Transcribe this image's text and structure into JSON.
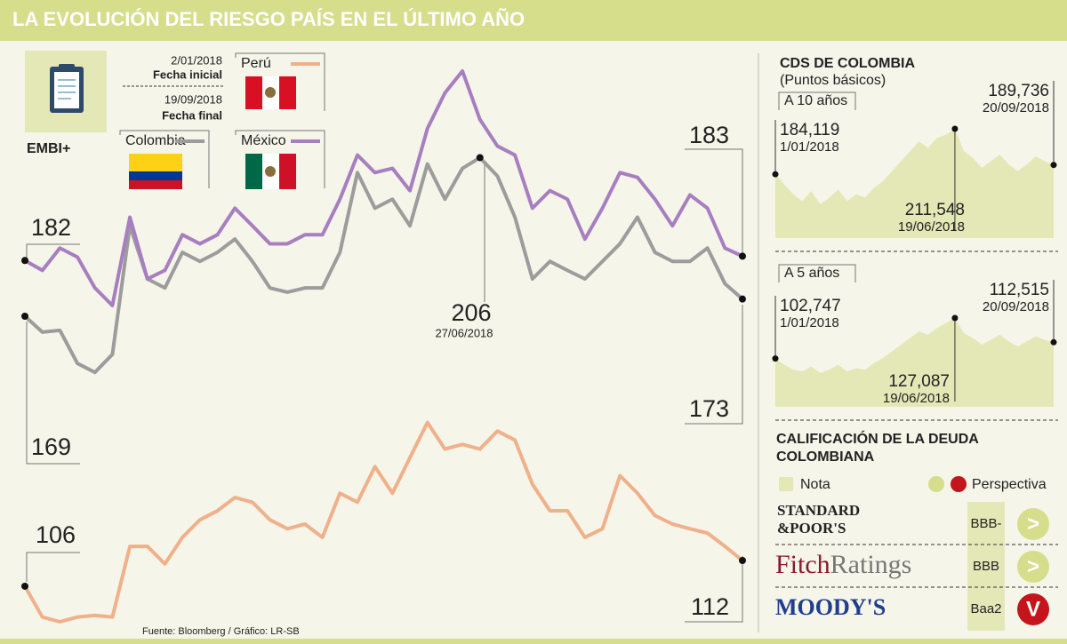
{
  "header": {
    "title": "LA EVOLUCIÓN DEL RIESGO PAÍS EN EL ÚLTIMO AÑO"
  },
  "embi_box": {
    "index_name": "EMBI+",
    "start_date": "2/01/2018",
    "start_label": "Fecha inicial",
    "end_date": "19/09/2018",
    "end_label": "Fecha final"
  },
  "chart_data": [
    {
      "type": "line",
      "series": [
        {
          "name": "Colombia",
          "color": "#9c9c9c",
          "values": [
            169,
            165.3,
            165.7,
            158.0,
            155.9,
            160.1,
            190.1,
            177.7,
            175.6,
            183.9,
            181.8,
            183.9,
            187.0,
            181.8,
            175.6,
            174.6,
            175.6,
            175.6,
            183.9,
            202.5,
            194.2,
            196.3,
            190.1,
            204.5,
            196.3,
            203.5,
            206,
            201.7,
            192.1,
            177.7,
            181.8,
            179.7,
            177.7,
            181.8,
            185.9,
            192.1,
            183.9,
            181.8,
            181.8,
            184.9,
            176.6,
            173
          ]
        },
        {
          "name": "México",
          "color": "#a77fc0",
          "values": [
            182,
            179.7,
            184.9,
            182.8,
            175.6,
            171.5,
            192.1,
            177.7,
            179.7,
            188.0,
            185.9,
            188.0,
            194.2,
            190.1,
            185.9,
            185.9,
            188.0,
            188.0,
            196.3,
            206.6,
            202.5,
            203.5,
            198.3,
            212.8,
            221.1,
            226.2,
            214.9,
            208.7,
            206.6,
            194.2,
            198.3,
            196.3,
            187.0,
            194.2,
            202.5,
            201.4,
            196.3,
            190.1,
            197.3,
            194.2,
            184.9,
            183
          ]
        },
        {
          "name": "Perú",
          "color": "#f0b08a",
          "values": [
            106,
            98.8,
            97.7,
            98.8,
            99.2,
            98.8,
            115.3,
            115.3,
            111.2,
            117.4,
            121.5,
            123.6,
            126.7,
            125.6,
            121.5,
            119.4,
            120.5,
            117.4,
            127.7,
            125.6,
            133.9,
            127.7,
            136.0,
            144.2,
            138.0,
            139.1,
            138.0,
            142.2,
            140.1,
            129.8,
            123.6,
            123.6,
            117.4,
            119.4,
            131.8,
            127.7,
            122.5,
            120.5,
            119.4,
            118.4,
            115.3,
            112
          ]
        }
      ],
      "annotations": [
        "27/06/2018"
      ]
    },
    {
      "type": "area",
      "title": "A 10 años",
      "color": "#e4e8b6",
      "values": [
        184.119,
        178,
        172,
        168,
        174,
        166,
        170,
        175,
        168,
        172,
        170,
        176,
        180,
        186,
        192,
        198,
        204,
        200,
        206,
        208,
        211.548,
        198,
        194,
        188,
        192,
        196,
        190,
        186,
        190,
        195,
        192,
        189.736
      ],
      "value_labels": [
        "184,119",
        null,
        null,
        null,
        null,
        null,
        null,
        null,
        null,
        null,
        null,
        null,
        null,
        null,
        null,
        null,
        null,
        null,
        null,
        null,
        "211,548",
        null,
        null,
        null,
        null,
        null,
        null,
        null,
        null,
        null,
        null,
        "189,736"
      ],
      "date_labels": [
        "1/01/2018",
        null,
        null,
        null,
        null,
        null,
        null,
        null,
        null,
        null,
        null,
        null,
        null,
        null,
        null,
        null,
        null,
        null,
        null,
        null,
        "19/06/2018",
        null,
        null,
        null,
        null,
        null,
        null,
        null,
        null,
        null,
        null,
        "20/09/2018"
      ]
    },
    {
      "type": "area",
      "title": "A 5 años",
      "color": "#e4e8b6",
      "values": [
        102.747,
        99,
        96,
        95,
        98,
        94,
        96,
        99,
        95,
        97,
        96,
        100,
        103,
        107,
        111,
        115,
        119,
        117,
        121,
        124,
        127.087,
        118,
        115,
        111,
        114,
        117,
        113,
        110,
        113,
        116,
        114,
        112.515
      ],
      "value_labels": [
        "102,747",
        null,
        null,
        null,
        null,
        null,
        null,
        null,
        null,
        null,
        null,
        null,
        null,
        null,
        null,
        null,
        null,
        null,
        null,
        null,
        "127,087",
        null,
        null,
        null,
        null,
        null,
        null,
        null,
        null,
        null,
        null,
        "112,515"
      ],
      "date_labels": [
        "1/01/2018",
        null,
        null,
        null,
        null,
        null,
        null,
        null,
        null,
        null,
        null,
        null,
        null,
        null,
        null,
        null,
        null,
        null,
        null,
        null,
        "19/06/2018",
        null,
        null,
        null,
        null,
        null,
        null,
        null,
        null,
        null,
        null,
        "20/09/2018"
      ]
    }
  ],
  "cds": {
    "title": "CDS DE COLOMBIA",
    "subtitle": "(Puntos básicos)"
  },
  "ratings": {
    "title": [
      "CALIFICACIÓN DE LA DEUDA",
      "COLOMBIANA"
    ],
    "note_label": "Nota",
    "outlook_label": "Perspectiva",
    "rows": [
      {
        "agency": [
          "STANDARD",
          "&POOR'S"
        ],
        "rating": "BBB-",
        "outlook": ">",
        "outlook_color": "#d6de8c"
      },
      {
        "agency": [
          "Fitch",
          "Ratings"
        ],
        "rating": "BBB",
        "outlook": ">",
        "outlook_color": "#d6de8c"
      },
      {
        "agency": [
          "MOODY'S"
        ],
        "rating": "Baa2",
        "outlook": "V",
        "outlook_color": "#c4151c"
      }
    ]
  },
  "source": "Fuente: Bloomberg / Gráfico: LR-SB"
}
